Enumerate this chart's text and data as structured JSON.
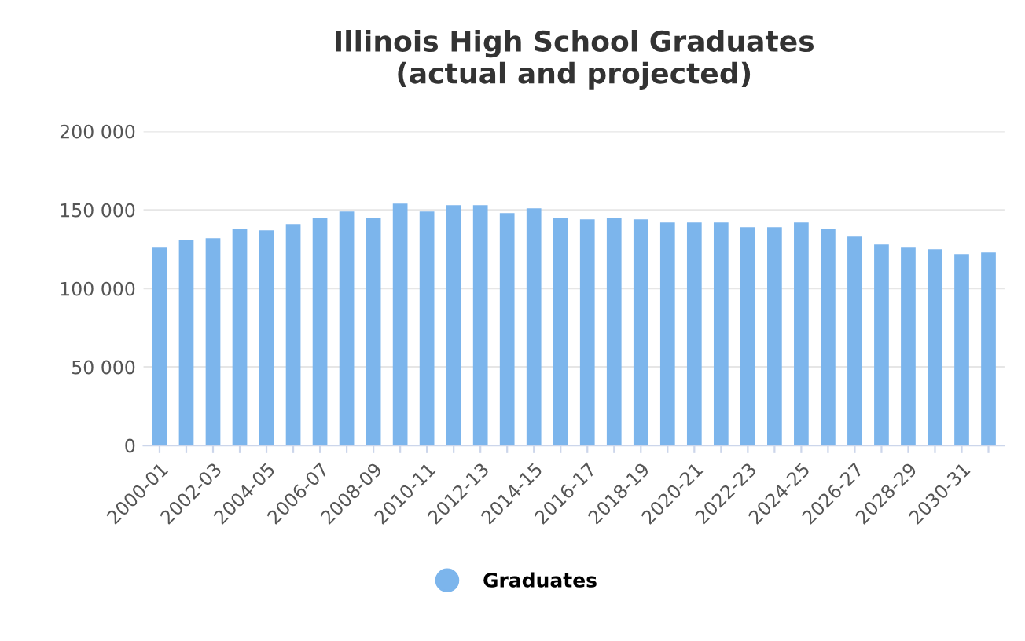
{
  "chart_data": {
    "type": "bar",
    "title": "Illinois High School Graduates\n(actual and projected)",
    "categories": [
      "2000-01",
      null,
      "2002-03",
      null,
      "2004-05",
      null,
      "2006-07",
      null,
      "2008-09",
      null,
      "2010-11",
      null,
      "2012-13",
      null,
      "2014-15",
      null,
      "2016-17",
      null,
      "2018-19",
      null,
      "2020-21",
      null,
      "2022-23",
      null,
      "2024-25",
      null,
      "2026-27",
      null,
      "2028-29",
      null,
      "2030-31",
      null
    ],
    "series": [
      {
        "name": "Graduates",
        "color": "#7cb5ec",
        "values": [
          126000,
          131000,
          132000,
          138000,
          137000,
          141000,
          145000,
          149000,
          145000,
          154000,
          149000,
          153000,
          153000,
          148000,
          151000,
          145000,
          144000,
          145000,
          144000,
          142000,
          142000,
          142000,
          139000,
          139000,
          142000,
          138000,
          133000,
          128000,
          126000,
          125000,
          122000,
          123000
        ]
      }
    ],
    "ylim": [
      0,
      200000
    ],
    "yticks": [
      {
        "value": 0,
        "label": "0"
      },
      {
        "value": 50000,
        "label": "50 000"
      },
      {
        "value": 100000,
        "label": "100 000"
      },
      {
        "value": 150000,
        "label": "150 000"
      },
      {
        "value": 200000,
        "label": "200 000"
      }
    ],
    "grid": "y",
    "legend": "bottom",
    "marker": "circle"
  }
}
